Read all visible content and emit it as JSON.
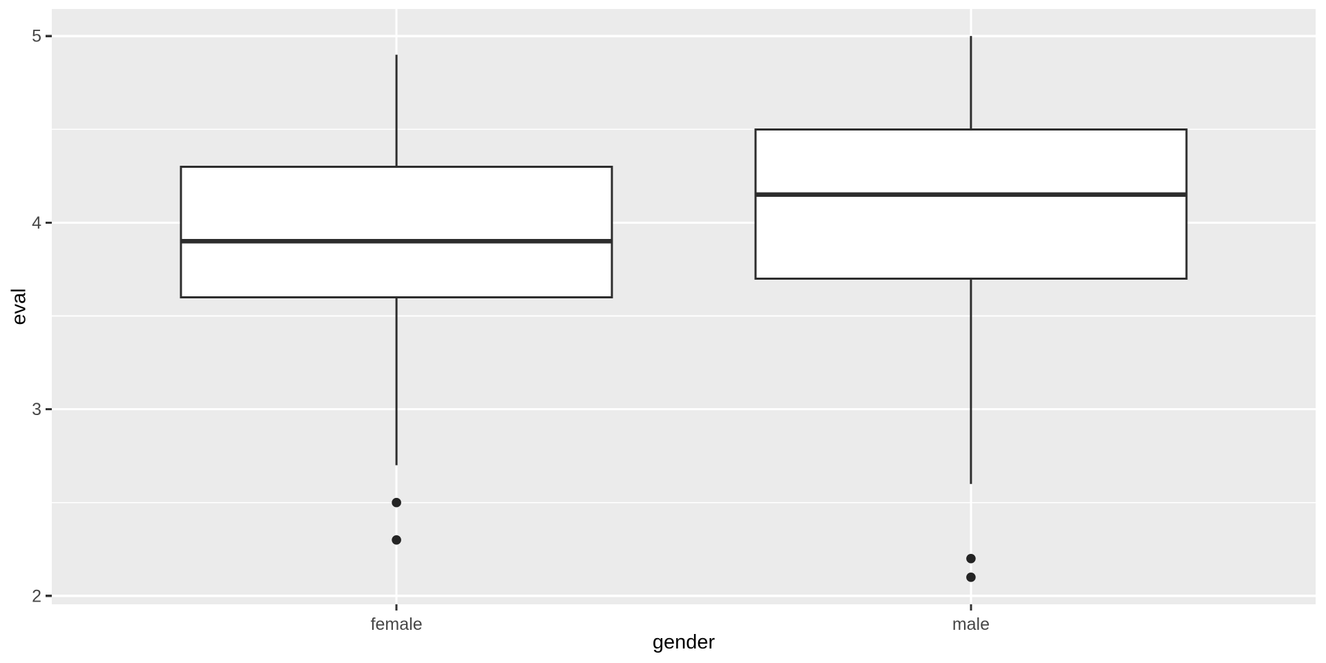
{
  "figure": {
    "background": "#FFFFFF"
  },
  "chart_data": {
    "type": "boxplot",
    "title": "",
    "x_axis": {
      "label": "gender",
      "categories": [
        "female",
        "male"
      ]
    },
    "y_axis": {
      "label": "eval",
      "ticks": [
        2,
        3,
        4,
        5
      ],
      "minor_gridlines": [
        2.5,
        3.5,
        4.5
      ],
      "domain": [
        1.955,
        5.145
      ]
    },
    "series": [
      {
        "category": "female",
        "whisker_low": 2.7,
        "q1": 3.6,
        "median": 3.9,
        "q3": 4.3,
        "whisker_high": 4.9,
        "outliers": [
          2.5,
          2.3
        ]
      },
      {
        "category": "male",
        "whisker_low": 2.6,
        "q1": 3.7,
        "median": 4.15,
        "q3": 4.5,
        "whisker_high": 5.0,
        "outliers": [
          2.2,
          2.1
        ]
      }
    ],
    "style": {
      "panel_background": "#EBEBEB",
      "gridline_color": "#FFFFFF",
      "box_fill": "#FFFFFF",
      "box_stroke": "#2D2D2D",
      "median_stroke": "#2D2D2D",
      "outlier_color": "#242424",
      "tick_label_color": "#474747",
      "tick_mark_color": "#333333",
      "axis_title_color": "#000000"
    },
    "legend": "none",
    "grid": "horizontal major+minor, vertical major at categories"
  }
}
